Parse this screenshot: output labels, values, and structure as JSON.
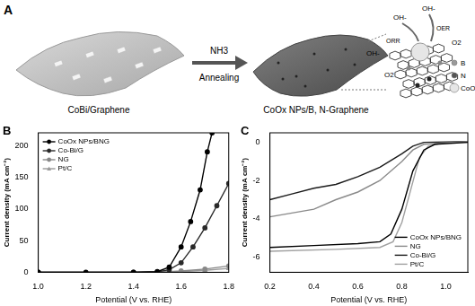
{
  "diagram": {
    "panel": "A",
    "texts": {
      "left_label": "CoBi/Graphene",
      "arrow_top": "NH3",
      "arrow_bottom": "Annealing",
      "right_label": "CoOx NPs/B, N-Graphene",
      "reactant": "OH-",
      "oer": "OER",
      "orr": "ORR",
      "product": "O2"
    },
    "legend": [
      "B",
      "N",
      "CoO"
    ]
  },
  "chart_data": [
    {
      "type": "line",
      "title": "B",
      "x_label": "Potential (V vs. RHE)",
      "y_label": "Current density (mA cm⁻²)",
      "xlim": [
        1.0,
        1.8
      ],
      "xticks": [
        {
          "value": 1.0,
          "label": "1.0"
        },
        {
          "value": 1.2,
          "label": "1.2"
        },
        {
          "value": 1.4,
          "label": "1.4"
        },
        {
          "value": 1.6,
          "label": "1.6"
        },
        {
          "value": 1.8,
          "label": "1.8"
        }
      ],
      "ylim": [
        0,
        220
      ],
      "yticks": [
        0,
        50,
        100,
        150,
        200
      ],
      "grid": false,
      "legend": "upper left",
      "series": [
        {
          "name": "CoOx NPs/BNG",
          "color": "#000000",
          "marker": "circle",
          "x": [
            1.0,
            1.2,
            1.4,
            1.5,
            1.55,
            1.6,
            1.64,
            1.68,
            1.71,
            1.73
          ],
          "values": [
            0,
            0,
            0,
            1,
            8,
            40,
            80,
            130,
            190,
            220
          ]
        },
        {
          "name": "Co-Bi/G",
          "color": "#2a2a2a",
          "marker": "circle",
          "x": [
            1.0,
            1.4,
            1.5,
            1.55,
            1.6,
            1.65,
            1.7,
            1.75,
            1.8
          ],
          "values": [
            0,
            0,
            0.5,
            4,
            15,
            40,
            70,
            105,
            140
          ]
        },
        {
          "name": "NG",
          "color": "#888888",
          "marker": "circle",
          "x": [
            1.0,
            1.5,
            1.6,
            1.7,
            1.8
          ],
          "values": [
            0,
            0,
            2,
            5,
            10
          ]
        },
        {
          "name": "Pt/C",
          "color": "#9a9a9a",
          "marker": "triangle",
          "x": [
            1.0,
            1.5,
            1.6,
            1.7,
            1.8
          ],
          "values": [
            0,
            0,
            1,
            3,
            6
          ]
        }
      ]
    },
    {
      "type": "line",
      "title": "C",
      "x_label": "Potential (V vs. RHE)",
      "y_label": "Current density (mA cm⁻²)",
      "xlim": [
        0.2,
        1.1
      ],
      "xticks": [
        0.2,
        0.4,
        0.6,
        0.8,
        {
          "value": 1.0,
          "label": "1.0"
        }
      ],
      "ylim": [
        -6.8,
        0.5
      ],
      "yticks": [
        -6,
        -4,
        -2,
        0
      ],
      "grid": false,
      "legend": "lower right",
      "series": [
        {
          "name": "CoOx NPs/BNG",
          "color": "#000000",
          "x": [
            0.2,
            0.4,
            0.6,
            0.7,
            0.75,
            0.8,
            0.85,
            0.9,
            0.95,
            1.1
          ],
          "values": [
            -5.5,
            -5.4,
            -5.3,
            -5.2,
            -4.8,
            -3.5,
            -1.5,
            -0.4,
            -0.1,
            0
          ]
        },
        {
          "name": "NG",
          "color": "#8a8a8a",
          "x": [
            0.2,
            0.3,
            0.4,
            0.5,
            0.6,
            0.7,
            0.8,
            0.85,
            0.9,
            1.1
          ],
          "values": [
            -3.9,
            -3.7,
            -3.5,
            -3.0,
            -2.6,
            -2.0,
            -1.0,
            -0.4,
            -0.1,
            0.05
          ]
        },
        {
          "name": "Co-Bi/G",
          "color": "#1a1a1a",
          "x": [
            0.2,
            0.3,
            0.4,
            0.5,
            0.6,
            0.7,
            0.8,
            0.85,
            0.9,
            1.1
          ],
          "values": [
            -3.0,
            -2.7,
            -2.4,
            -2.2,
            -1.8,
            -1.3,
            -0.6,
            -0.2,
            0,
            0.05
          ]
        },
        {
          "name": "Pt/C",
          "color": "#a0a0a0",
          "x": [
            0.2,
            0.5,
            0.7,
            0.76,
            0.8,
            0.84,
            0.88,
            0.92,
            1.0,
            1.1
          ],
          "values": [
            -5.7,
            -5.6,
            -5.5,
            -5.2,
            -4.2,
            -2.5,
            -0.8,
            -0.2,
            0,
            0
          ]
        }
      ]
    }
  ]
}
